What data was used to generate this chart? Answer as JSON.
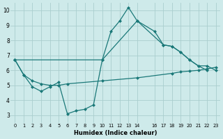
{
  "xlabel": "Humidex (Indice chaleur)",
  "bg_color": "#ceeaea",
  "grid_color": "#aacece",
  "line_color": "#1a7878",
  "markersize": 2.5,
  "linewidth": 0.9,
  "xlim": [
    -0.5,
    23.5
  ],
  "ylim": [
    2.5,
    10.5
  ],
  "yticks": [
    3,
    4,
    5,
    6,
    7,
    8,
    9,
    10
  ],
  "xticks": [
    0,
    1,
    2,
    3,
    4,
    5,
    6,
    7,
    8,
    9,
    10,
    11,
    12,
    13,
    14,
    16,
    17,
    18,
    19,
    20,
    21,
    22,
    23
  ],
  "series1_x": [
    0,
    1,
    2,
    3,
    4,
    5,
    6,
    7,
    8,
    9,
    10,
    11,
    12,
    13,
    14,
    16,
    17,
    18,
    19,
    20,
    21,
    22
  ],
  "series1_y": [
    6.7,
    5.7,
    4.9,
    4.6,
    4.9,
    5.2,
    3.1,
    3.3,
    3.4,
    3.7,
    6.7,
    8.6,
    9.3,
    10.2,
    9.3,
    8.6,
    7.7,
    7.6,
    7.2,
    6.7,
    6.3,
    6.0
  ],
  "series2_x": [
    0,
    1,
    2,
    3,
    4,
    5,
    6,
    10,
    14,
    18,
    19,
    20,
    21,
    22,
    23
  ],
  "series2_y": [
    6.7,
    5.7,
    5.3,
    5.1,
    5.0,
    5.0,
    5.1,
    5.3,
    5.5,
    5.8,
    5.9,
    5.95,
    6.0,
    6.1,
    6.2
  ],
  "series3_x": [
    0,
    10,
    14,
    17,
    18,
    19,
    20,
    21,
    22,
    23
  ],
  "series3_y": [
    6.7,
    6.7,
    9.3,
    7.7,
    7.6,
    7.2,
    6.7,
    6.3,
    6.3,
    6.0
  ]
}
